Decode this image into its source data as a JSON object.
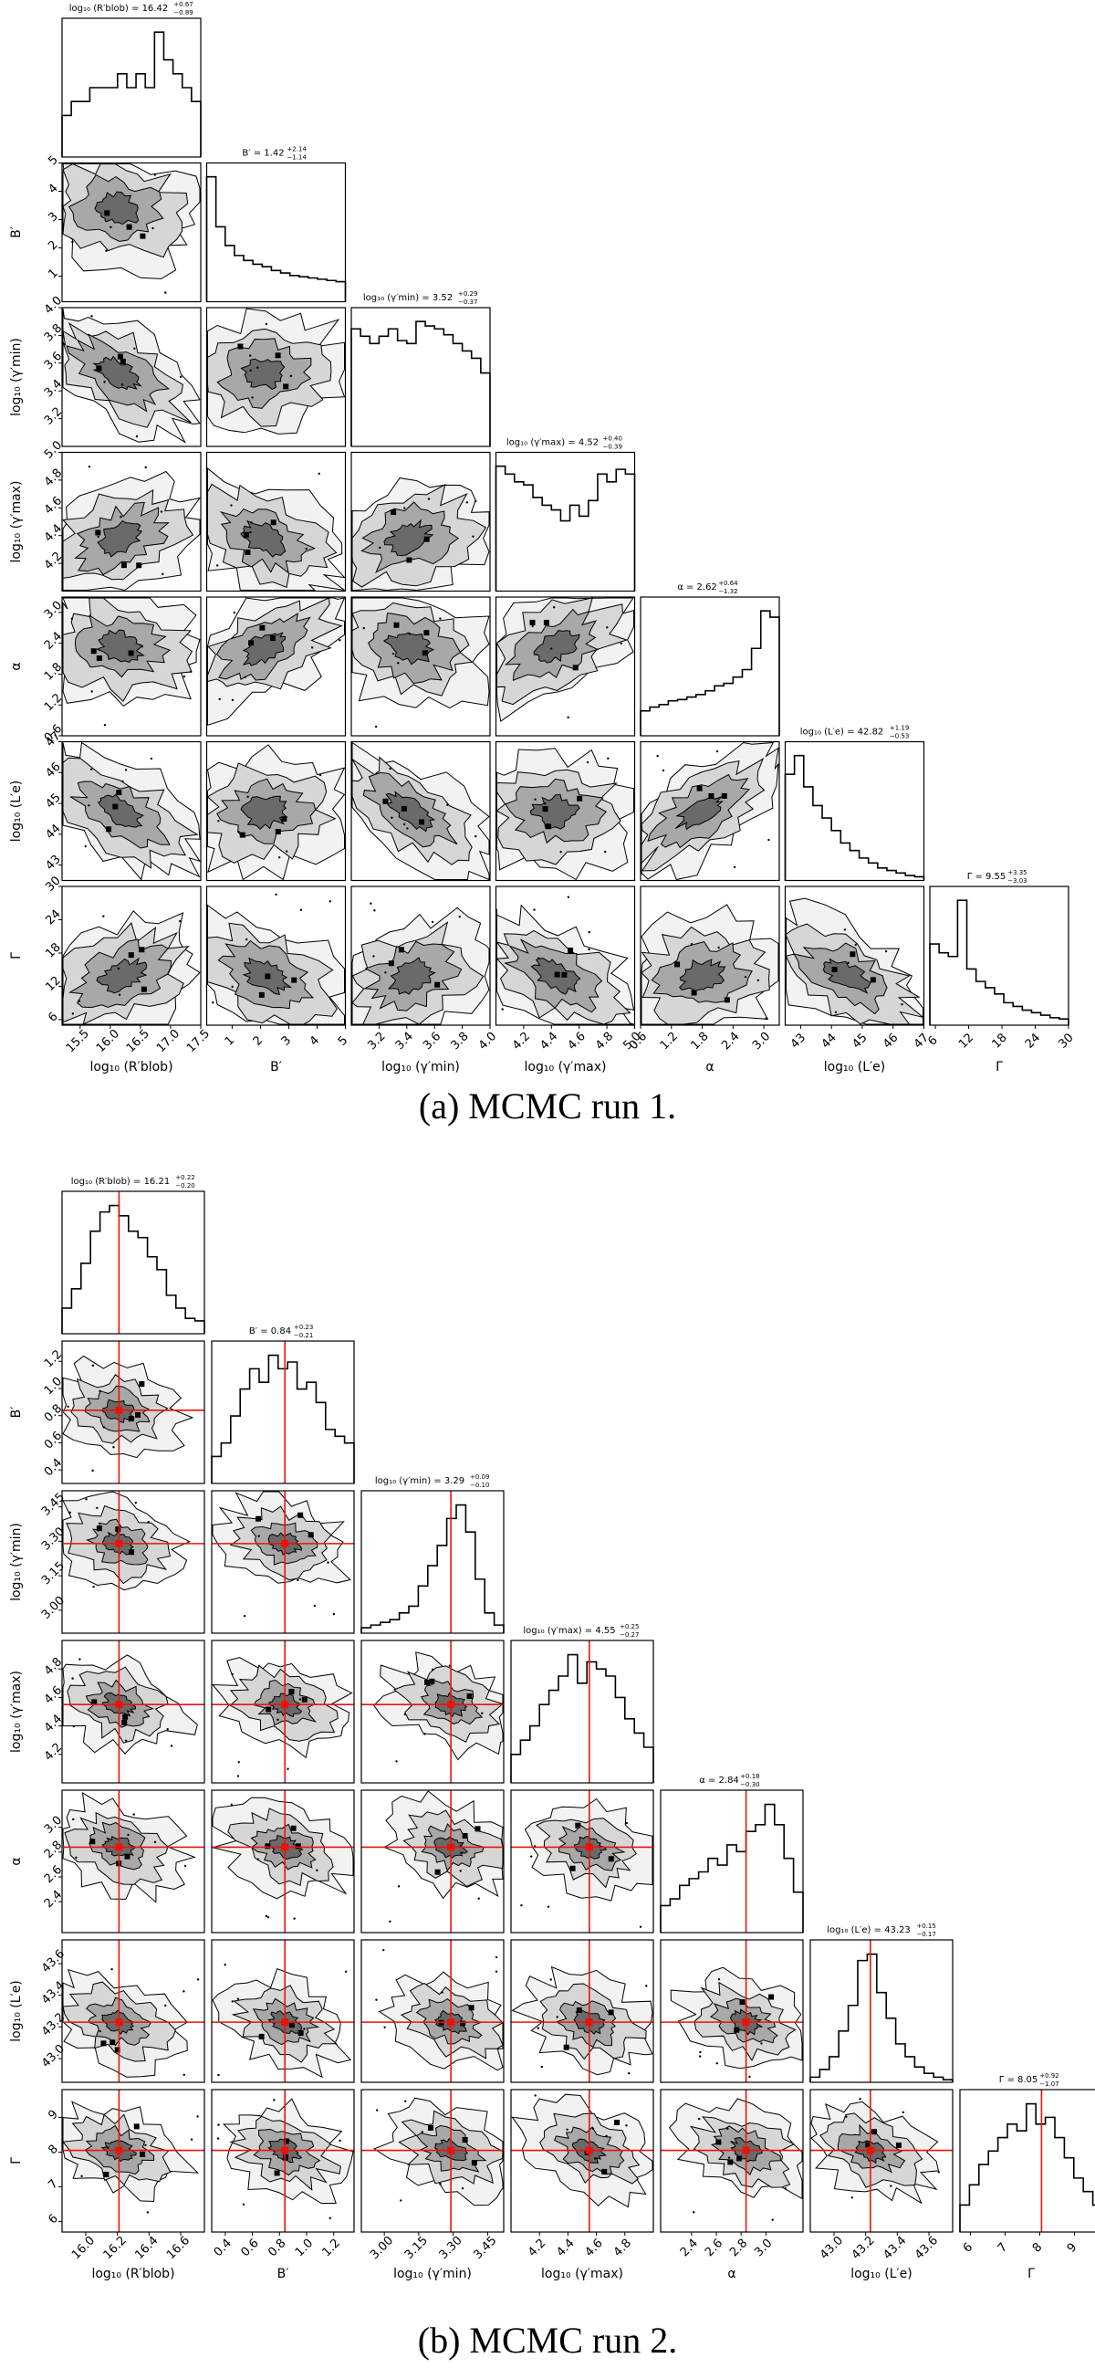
{
  "figure": {
    "captions": [
      "(a) MCMC run 1.",
      "(b) MCMC run 2."
    ]
  },
  "chart_data": [
    {
      "type": "corner",
      "title": "(a) MCMC run 1.",
      "parameters": [
        {
          "label": "log₁₀ (R′blob)",
          "title": "log₁₀ (R′blob) = 16.42",
          "sup": "+0.67",
          "sub": "−0.89",
          "range": [
            15.2,
            17.5
          ],
          "ticks": [
            15.5,
            16.0,
            16.5,
            17.0,
            17.5
          ],
          "tick_labels": [
            "15.5",
            "16.0",
            "16.5",
            "17.0",
            "17.5"
          ],
          "hist": [
            3,
            4,
            4,
            5,
            5,
            5,
            6,
            5,
            6,
            5,
            9,
            7,
            6,
            5,
            4
          ]
        },
        {
          "label": "B′",
          "title": "B′ = 1.42",
          "sup": "+2.14",
          "sub": "−1.14",
          "range": [
            0.1,
            5.0
          ],
          "ticks": [
            1,
            2,
            3,
            4,
            5
          ],
          "tick_labels": [
            "1",
            "2",
            "3",
            "4",
            "5"
          ],
          "hist": [
            10,
            6,
            4.5,
            3.7,
            3.3,
            3,
            2.8,
            2.5,
            2.3,
            2.1,
            2,
            1.9,
            1.8,
            1.7,
            1.6
          ]
        },
        {
          "label": "log₁₀ (γ′min)",
          "title": "log₁₀ (γ′min) = 3.52",
          "sup": "+0.29",
          "sub": "−0.37",
          "range": [
            3.0,
            4.0
          ],
          "ticks": [
            3.2,
            3.4,
            3.6,
            3.8,
            4.0
          ],
          "tick_labels": [
            "3.2",
            "3.4",
            "3.6",
            "3.8",
            "4.0"
          ],
          "hist": [
            8,
            7.5,
            7,
            7.5,
            8,
            7.2,
            7,
            8.5,
            8.2,
            8,
            7.6,
            7,
            6.5,
            6,
            5
          ]
        },
        {
          "label": "log₁₀ (γ′max)",
          "title": "log₁₀ (γ′max) = 4.52",
          "sup": "+0.40",
          "sub": "−0.39",
          "range": [
            4.0,
            5.0
          ],
          "ticks": [
            4.2,
            4.4,
            4.6,
            4.8,
            5.0
          ],
          "tick_labels": [
            "4.2",
            "4.4",
            "4.6",
            "4.8",
            "5.0"
          ],
          "hist": [
            8,
            7.5,
            7,
            6.8,
            6,
            5.5,
            5.2,
            4.5,
            5.5,
            4.8,
            5.8,
            7.5,
            7,
            7.8,
            7.5
          ]
        },
        {
          "label": "α",
          "title": "α = 2.62",
          "sup": "+0.64",
          "sub": "−1.32",
          "range": [
            0.6,
            3.3
          ],
          "ticks": [
            0.6,
            1.2,
            1.8,
            2.4,
            3.0
          ],
          "tick_labels": [
            "0.6",
            "1.2",
            "1.8",
            "2.4",
            "3.0"
          ],
          "hist": [
            2,
            2.3,
            2.5,
            2.8,
            2.9,
            3.1,
            3.3,
            3.6,
            4,
            4.2,
            4.7,
            5.3,
            7,
            10,
            9.5
          ]
        },
        {
          "label": "log₁₀ (L′e)",
          "title": "log₁₀ (L′e) = 42.82",
          "sup": "+1.19",
          "sub": "−0.53",
          "range": [
            42.5,
            47.0
          ],
          "ticks": [
            43,
            44,
            45,
            46,
            47
          ],
          "tick_labels": [
            "43",
            "44",
            "45",
            "46",
            "47"
          ],
          "hist": [
            8.5,
            10,
            7.5,
            6,
            5,
            4,
            3,
            2.4,
            1.8,
            1.4,
            1,
            0.8,
            0.6,
            0.4,
            0.3
          ]
        },
        {
          "label": "Γ",
          "title": "Γ = 9.55",
          "sup": "+3.35",
          "sub": "−3.03",
          "range": [
            5.0,
            30.0
          ],
          "ticks": [
            6,
            12,
            18,
            24,
            30
          ],
          "tick_labels": [
            "6",
            "12",
            "18",
            "24",
            "30"
          ],
          "hist": [
            6.5,
            5.8,
            5.5,
            10,
            4.5,
            3.5,
            3,
            2.5,
            1.8,
            1.5,
            1.2,
            1,
            0.8,
            0.6,
            0.5
          ]
        }
      ],
      "truth": null
    },
    {
      "type": "corner",
      "title": "(b) MCMC run 2.",
      "parameters": [
        {
          "label": "log₁₀ (R′blob)",
          "title": "log₁₀ (R′blob) = 16.21",
          "sup": "+0.22",
          "sub": "−0.20",
          "range": [
            15.85,
            16.75
          ],
          "ticks": [
            16.0,
            16.2,
            16.4,
            16.6
          ],
          "tick_labels": [
            "16.0",
            "16.2",
            "16.4",
            "16.6"
          ],
          "hist": [
            2,
            3.5,
            5.5,
            8,
            9.5,
            10,
            9.2,
            8,
            7.5,
            6,
            5,
            3,
            2,
            1.2,
            1
          ]
        },
        {
          "label": "B′",
          "title": "B′ = 0.84",
          "sup": "+0.23",
          "sub": "−0.21",
          "range": [
            0.3,
            1.35
          ],
          "ticks": [
            0.4,
            0.6,
            0.8,
            1.0,
            1.2
          ],
          "tick_labels": [
            "0.4",
            "0.6",
            "0.8",
            "1.0",
            "1.2"
          ],
          "hist": [
            2,
            3,
            5,
            7,
            8.5,
            7.5,
            9.5,
            8.5,
            9,
            7,
            7.5,
            6,
            4,
            3.5,
            3
          ]
        },
        {
          "label": "log₁₀ (γ′min)",
          "title": "log₁₀ (γ′min) = 3.29",
          "sup": "+0.09",
          "sub": "−0.10",
          "range": [
            2.9,
            3.52
          ],
          "ticks": [
            3.0,
            3.15,
            3.3,
            3.45
          ],
          "tick_labels": [
            "3.00",
            "3.15",
            "3.30",
            "3.45"
          ],
          "hist": [
            0.4,
            0.6,
            0.8,
            1,
            1.5,
            2,
            3.5,
            5,
            6.5,
            8.5,
            9.5,
            7.5,
            4,
            1.5,
            0.6
          ]
        },
        {
          "label": "log₁₀ (γ′max)",
          "title": "log₁₀ (γ′max) = 4.55",
          "sup": "+0.25",
          "sub": "−0.27",
          "range": [
            4.0,
            5.0
          ],
          "ticks": [
            4.2,
            4.4,
            4.6,
            4.8
          ],
          "tick_labels": [
            "4.2",
            "4.4",
            "4.6",
            "4.8"
          ],
          "hist": [
            2,
            3,
            4,
            5.5,
            6.5,
            7.5,
            9,
            7,
            8.5,
            8,
            7.5,
            6,
            4.5,
            3.5,
            2.5
          ]
        },
        {
          "label": "α",
          "title": "α = 2.84",
          "sup": "+0.18",
          "sub": "−0.30",
          "range": [
            2.15,
            3.3
          ],
          "ticks": [
            2.4,
            2.6,
            2.8,
            3.0
          ],
          "tick_labels": [
            "2.4",
            "2.6",
            "2.8",
            "3.0"
          ],
          "hist": [
            2,
            2.5,
            3.5,
            4,
            4.5,
            5.5,
            5,
            6.5,
            6,
            7.5,
            8,
            9.5,
            8,
            5.5,
            3
          ]
        },
        {
          "label": "log₁₀ (L′e)",
          "title": "log₁₀ (L′e) = 43.23",
          "sup": "+0.15",
          "sub": "−0.17",
          "range": [
            42.85,
            43.75
          ],
          "ticks": [
            43.0,
            43.2,
            43.4,
            43.6
          ],
          "tick_labels": [
            "43.0",
            "43.2",
            "43.4",
            "43.6"
          ],
          "hist": [
            0.4,
            1,
            2,
            4,
            6,
            9.5,
            10,
            7,
            5,
            3,
            2,
            1.2,
            0.7,
            0.4,
            0.2
          ]
        },
        {
          "label": "Γ",
          "title": "Γ = 8.05",
          "sup": "+0.92",
          "sub": "−1.07",
          "range": [
            5.7,
            9.8
          ],
          "ticks": [
            6,
            7,
            8,
            9
          ],
          "tick_labels": [
            "6",
            "7",
            "8",
            "9"
          ],
          "hist": [
            2,
            3.5,
            5,
            6,
            7,
            8,
            7.5,
            9.5,
            8,
            8.5,
            7,
            5.5,
            4,
            3,
            2
          ]
        }
      ],
      "truth": [
        16.21,
        0.84,
        3.29,
        4.55,
        2.84,
        43.23,
        8.05
      ]
    }
  ]
}
